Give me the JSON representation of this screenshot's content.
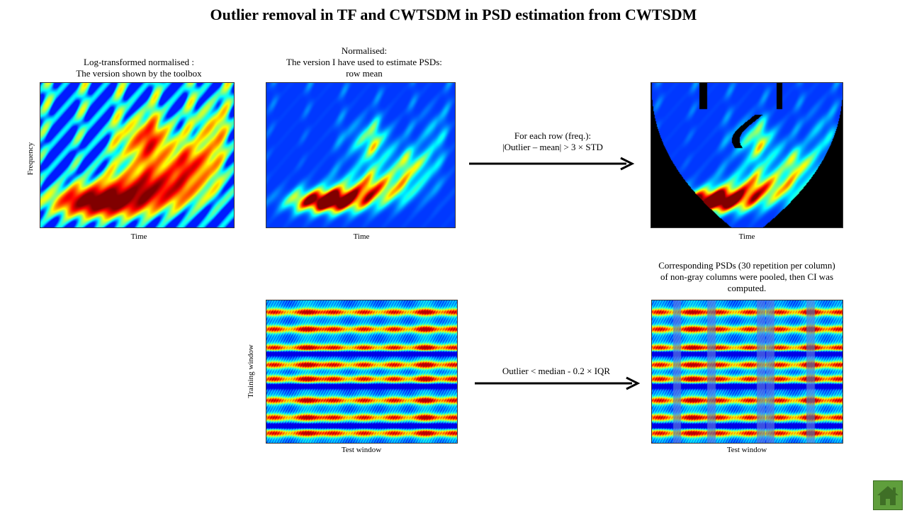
{
  "title": "Outlier removal in TF and CWTSDM in PSD estimation from CWTSDM",
  "panels": {
    "log_norm": {
      "caption_line1": "Log-transformed normalised :",
      "caption_line2": "The version shown by the toolbox",
      "xlabel": "Time",
      "ylabel": "Frequency"
    },
    "normalised": {
      "caption_line1": "Normalised:",
      "caption_line2": "The version I have used to estimate PSDs:",
      "caption_line3": "row mean",
      "xlabel": "Time"
    },
    "outlier_tf": {
      "xlabel": "Time"
    },
    "cwtsdm": {
      "xlabel": "Test window",
      "ylabel": "Training window"
    },
    "cwtsdm_gray": {
      "caption_line1": "Corresponding PSDs (30 repetition per column)",
      "caption_line2": "of non-gray columns were pooled, then CI was",
      "caption_line3": "computed.",
      "xlabel": "Test window"
    }
  },
  "arrows": {
    "top": {
      "line1": "For each row (freq.):",
      "line2": "|Outlier – mean| > 3 × STD"
    },
    "bottom": {
      "line1": "Outlier < median - 0.2 × IQR"
    }
  },
  "home_button": {
    "icon": "home-icon",
    "color": "#5f9e3c"
  }
}
